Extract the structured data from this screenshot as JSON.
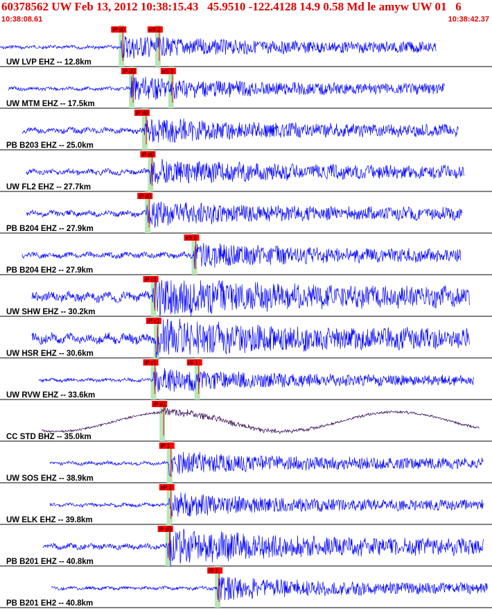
{
  "header": {
    "title": "60378562 UW Feb 13, 2012 10:38:15.43   45.9510 -122.4128 14.9 0.58 Md le amyw UW 01   6",
    "time_start": "10:38:08.61",
    "time_end": "10:38:42.37"
  },
  "colors": {
    "header_text": "#e00000",
    "trace": "#0000ff",
    "trace_bh": "#2a0050",
    "pick_box": "#ff0000",
    "pick_band": "#b7e6b7",
    "divider": "#000000"
  },
  "chart_data": {
    "type": "seismogram",
    "time_range": [
      "10:38:08.61",
      "10:38:42.37"
    ],
    "grid": false,
    "traces": [
      {
        "label": "UW LVP EHZ -- 12.8km",
        "amp": "medium",
        "noise": "low",
        "picks": [
          {
            "label": "iP d0",
            "t": "10:38:16.9"
          },
          {
            "label": "eS 2",
            "t": "10:38:19.4"
          }
        ]
      },
      {
        "label": "UW MTM EHZ -- 17.5km",
        "amp": "medium",
        "noise": "low",
        "picks": [
          {
            "label": "iP d0",
            "t": "10:38:17.6"
          },
          {
            "label": "eS 1",
            "t": "10:38:20.3"
          }
        ]
      },
      {
        "label": "PB B203 EHZ -- 25.0km",
        "amp": "medium",
        "noise": "medium",
        "picks": [
          {
            "label": "iP d0",
            "t": "10:38:18.5"
          }
        ]
      },
      {
        "label": "UW FL2 EHZ -- 27.7km",
        "amp": "medium",
        "noise": "medium",
        "picks": [
          {
            "label": "iP d0",
            "t": "10:38:18.9"
          }
        ]
      },
      {
        "label": "PB B204 EHZ -- 27.9km",
        "amp": "medium",
        "noise": "medium",
        "picks": [
          {
            "label": "iP d0",
            "t": "10:38:18.7"
          }
        ]
      },
      {
        "label": "PB B204 EH2 -- 27.9km",
        "amp": "medium",
        "noise": "medium",
        "picks": [
          {
            "label": "eS 2",
            "t": "10:38:21.9"
          }
        ]
      },
      {
        "label": "UW SHW EHZ -- 30.2km",
        "amp": "high",
        "noise": "high",
        "picks": [
          {
            "label": "iP c1",
            "t": "10:38:19.1"
          }
        ]
      },
      {
        "label": "UW HSR EHZ -- 30.6km",
        "amp": "high",
        "noise": "high",
        "picks": [
          {
            "label": "iP c1",
            "t": "10:38:19.3"
          }
        ]
      },
      {
        "label": "UW RVW EHZ -- 33.6km",
        "amp": "medium",
        "noise": "low",
        "picks": [
          {
            "label": "iP c1",
            "t": "10:38:19.1"
          },
          {
            "label": "iS 1",
            "t": "10:38:22.1"
          }
        ]
      },
      {
        "label": "CC STD BHZ -- 35.0km",
        "amp": "medium",
        "noise": "low",
        "picks": [
          {
            "label": "iP d1",
            "t": "10:38:19.7"
          }
        ]
      },
      {
        "label": "UW SOS EHZ -- 38.9km",
        "amp": "medium",
        "noise": "low",
        "picks": [
          {
            "label": "iP 1",
            "t": "10:38:20.2"
          }
        ]
      },
      {
        "label": "UW ELK EHZ -- 39.8km",
        "amp": "medium",
        "noise": "low",
        "picks": [
          {
            "label": "eP 2",
            "t": "10:38:20.2"
          }
        ]
      },
      {
        "label": "PB B201 EHZ -- 40.8km",
        "amp": "high",
        "noise": "medium",
        "picks": [
          {
            "label": "iP d0",
            "t": "10:38:20.1"
          }
        ]
      },
      {
        "label": "PB B201 EH2 -- 40.8km",
        "amp": "medium",
        "noise": "low",
        "picks": [
          {
            "label": "iS 1",
            "t": "10:38:23.5"
          }
        ]
      }
    ]
  }
}
